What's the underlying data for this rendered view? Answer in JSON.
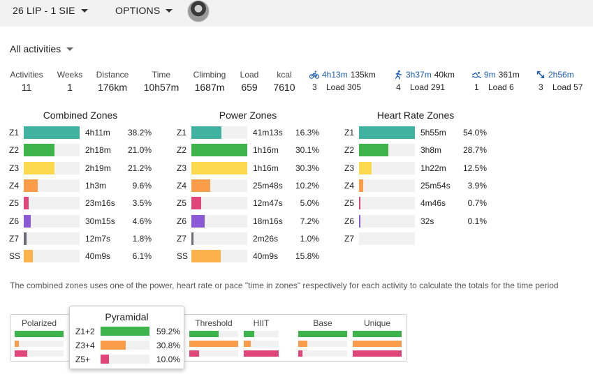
{
  "header": {
    "date_range": "26 LIP - 1 SIE",
    "options_label": "OPTIONS"
  },
  "activity_filter": "All activities",
  "stats": [
    {
      "label": "Activities",
      "value": "11"
    },
    {
      "label": "Weeks",
      "value": "1"
    },
    {
      "label": "Distance",
      "value": "176km"
    },
    {
      "label": "Time",
      "value": "10h57m"
    },
    {
      "label": "Climbing",
      "value": "1687m"
    },
    {
      "label": "Load",
      "value": "659"
    },
    {
      "label": "kcal",
      "value": "7610"
    }
  ],
  "sports": [
    {
      "icon": "bike-icon",
      "time": "4h13m",
      "distance": "135km",
      "count": "3",
      "load": "Load 305"
    },
    {
      "icon": "run-icon",
      "time": "3h37m",
      "distance": "40km",
      "count": "4",
      "load": "Load 291"
    },
    {
      "icon": "swim-icon",
      "time": "9m",
      "distance": "361m",
      "count": "1",
      "load": "Load 6"
    },
    {
      "icon": "other-icon",
      "time": "2h56m",
      "distance": "",
      "count": "3",
      "load": "Load 57"
    }
  ],
  "zone_colors": {
    "Z1": "#3fb3a0",
    "Z2": "#3cb44b",
    "Z3": "#fcd94e",
    "Z4": "#fa9d4a",
    "Z5": "#e0467a",
    "Z6": "#8a5ad6",
    "Z7": "#6b6b76",
    "SS": "#fcb24a"
  },
  "zone_tables": [
    {
      "title": "Combined Zones",
      "rows": [
        {
          "zone": "Z1",
          "time": "4h11m",
          "pct": "38.2%",
          "fill": 1.0
        },
        {
          "zone": "Z2",
          "time": "2h18m",
          "pct": "21.0%",
          "fill": 0.55
        },
        {
          "zone": "Z3",
          "time": "2h19m",
          "pct": "21.2%",
          "fill": 0.555
        },
        {
          "zone": "Z4",
          "time": "1h3m",
          "pct": "9.6%",
          "fill": 0.25
        },
        {
          "zone": "Z5",
          "time": "23m16s",
          "pct": "3.5%",
          "fill": 0.09
        },
        {
          "zone": "Z6",
          "time": "30m15s",
          "pct": "4.6%",
          "fill": 0.12
        },
        {
          "zone": "Z7",
          "time": "12m7s",
          "pct": "1.8%",
          "fill": 0.05
        },
        {
          "zone": "SS",
          "time": "40m9s",
          "pct": "6.1%",
          "fill": 0.16
        }
      ]
    },
    {
      "title": "Power Zones",
      "rows": [
        {
          "zone": "Z1",
          "time": "41m13s",
          "pct": "16.3%",
          "fill": 0.54
        },
        {
          "zone": "Z2",
          "time": "1h16m",
          "pct": "30.1%",
          "fill": 1.0
        },
        {
          "zone": "Z3",
          "time": "1h16m",
          "pct": "30.3%",
          "fill": 1.0
        },
        {
          "zone": "Z4",
          "time": "25m48s",
          "pct": "10.2%",
          "fill": 0.34
        },
        {
          "zone": "Z5",
          "time": "12m47s",
          "pct": "5.0%",
          "fill": 0.17
        },
        {
          "zone": "Z6",
          "time": "18m16s",
          "pct": "7.2%",
          "fill": 0.24
        },
        {
          "zone": "Z7",
          "time": "2m26s",
          "pct": "1.0%",
          "fill": 0.04
        },
        {
          "zone": "SS",
          "time": "40m9s",
          "pct": "15.8%",
          "fill": 0.52
        }
      ]
    },
    {
      "title": "Heart Rate Zones",
      "rows": [
        {
          "zone": "Z1",
          "time": "5h55m",
          "pct": "54.0%",
          "fill": 1.0
        },
        {
          "zone": "Z2",
          "time": "3h8m",
          "pct": "28.7%",
          "fill": 0.53
        },
        {
          "zone": "Z3",
          "time": "1h22m",
          "pct": "12.5%",
          "fill": 0.23
        },
        {
          "zone": "Z4",
          "time": "25m54s",
          "pct": "3.9%",
          "fill": 0.07
        },
        {
          "zone": "Z5",
          "time": "4m46s",
          "pct": "0.7%",
          "fill": 0.013
        },
        {
          "zone": "Z6",
          "time": "32s",
          "pct": "0.1%",
          "fill": 0.006
        },
        {
          "zone": "Z7",
          "time": "",
          "pct": "",
          "fill": 0
        }
      ]
    }
  ],
  "note": "The combined zones uses one of the power, heart rate or pace \"time in zones\" respectively for each activity to calculate the totals for the time period",
  "distribution": {
    "colors": [
      "#3cb44b",
      "#fa9d4a",
      "#e0467a"
    ],
    "models": [
      {
        "name": "Polarized",
        "fills": [
          1.0,
          0.08,
          0.25
        ]
      },
      {
        "name": "Threshold",
        "fills": [
          0.6,
          1.0,
          0.2
        ]
      },
      {
        "name": "HIIT",
        "fills": [
          0.3,
          0.2,
          1.0
        ]
      },
      {
        "name": "Base",
        "fills": [
          1.0,
          0.18,
          0.08
        ]
      },
      {
        "name": "Unique",
        "fills": [
          1.0,
          1.0,
          1.0
        ]
      }
    ],
    "pyramidal": {
      "title": "Pyramidal",
      "rows": [
        {
          "label": "Z1+2",
          "pct": "59.2%",
          "fill": 1.0
        },
        {
          "label": "Z3+4",
          "pct": "30.8%",
          "fill": 0.52
        },
        {
          "label": "Z5+",
          "pct": "10.0%",
          "fill": 0.17
        }
      ]
    }
  }
}
